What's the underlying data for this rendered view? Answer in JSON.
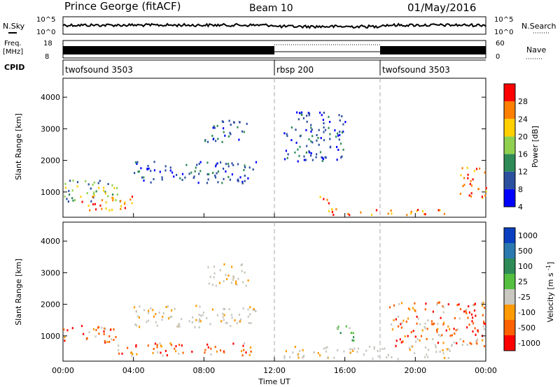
{
  "header": {
    "station": "Prince George (fitACF)",
    "beam": "Beam 10",
    "date": "01/May/2016"
  },
  "top_panels": {
    "nsky_label": "N.Sky",
    "nsky_ticks": [
      "10^5",
      "10^0"
    ],
    "nsearch_label": "N.Search",
    "nsearch_ticks": [
      "10^5",
      "10^0"
    ],
    "freq_label": [
      "Freq.",
      "[MHz]"
    ],
    "freq_ticks": [
      "18",
      "8"
    ],
    "nave_label": "Nave",
    "nave_ticks": [
      "60",
      "0"
    ],
    "cpid_label": "CPID",
    "cpid_segments": [
      {
        "label": "twofsound 3503",
        "start_h": 0,
        "end_h": 12.0
      },
      {
        "label": "rbsp 200",
        "start_h": 12.0,
        "end_h": 18.0
      },
      {
        "label": "twofsound 3503",
        "start_h": 18.0,
        "end_h": 24.0
      }
    ]
  },
  "chart_data": [
    {
      "type": "heatmap",
      "panel": "power",
      "xlabel": "Time UT",
      "ylabel": "Slant Range [km]",
      "xlim": [
        0,
        24
      ],
      "ylim": [
        200,
        4600
      ],
      "x_ticks": [
        "00:00",
        "04:00",
        "08:00",
        "12:00",
        "16:00",
        "20:00",
        "00:00"
      ],
      "y_ticks": [
        1000,
        2000,
        3000,
        4000
      ],
      "colorbar": {
        "label": "Power [dB]",
        "ticks": [
          "28",
          "24",
          "20",
          "16",
          "12",
          "8",
          "4"
        ],
        "colors": [
          "#ff0000",
          "#ff7f00",
          "#ffd000",
          "#8fd14f",
          "#2e8b57",
          "#2c4fa0",
          "#0000ff"
        ]
      },
      "features": [
        {
          "time": [
            0.0,
            3.5
          ],
          "range": [
            700,
            1400
          ],
          "level": "medium"
        },
        {
          "time": [
            1.0,
            4.0
          ],
          "range": [
            450,
            900
          ],
          "level": "high"
        },
        {
          "time": [
            4.0,
            11.0
          ],
          "range": [
            1300,
            2000
          ],
          "level": "low"
        },
        {
          "time": [
            8.0,
            10.5
          ],
          "range": [
            2600,
            3300
          ],
          "level": "low"
        },
        {
          "time": [
            12.5,
            16.0
          ],
          "range": [
            2000,
            3600
          ],
          "level": "low"
        },
        {
          "time": [
            14.5,
            15.3
          ],
          "range": [
            650,
            900
          ],
          "level": "high"
        },
        {
          "time": [
            15.0,
            22.0
          ],
          "range": [
            300,
            500
          ],
          "level": "high"
        },
        {
          "time": [
            22.5,
            24.0
          ],
          "range": [
            800,
            1800
          ],
          "level": "high"
        }
      ]
    },
    {
      "type": "heatmap",
      "panel": "velocity",
      "xlabel": "Time UT",
      "ylabel": "Slant Range [km]",
      "xlim": [
        0,
        24
      ],
      "ylim": [
        200,
        4600
      ],
      "x_ticks": [
        "00:00",
        "04:00",
        "08:00",
        "12:00",
        "16:00",
        "20:00",
        "00:00"
      ],
      "y_ticks": [
        1000,
        2000,
        3000,
        4000
      ],
      "colorbar": {
        "label": "Velocity [m s^-1]",
        "ticks": [
          "1000",
          "500",
          "100",
          "25",
          "-25",
          "-100",
          "-500",
          "-1000"
        ],
        "colors": [
          "#0a3fc0",
          "#2a7ab0",
          "#2e8b57",
          "#55c040",
          "#c8c8c0",
          "#ff9a00",
          "#ff6000",
          "#ff0000"
        ]
      },
      "features": [
        {
          "time": [
            0.0,
            3.0
          ],
          "range": [
            800,
            1400
          ],
          "level": "negative"
        },
        {
          "time": [
            3.0,
            11.0
          ],
          "range": [
            400,
            800
          ],
          "level": "negative"
        },
        {
          "time": [
            4.0,
            11.0
          ],
          "range": [
            1300,
            2000
          ],
          "level": "near-zero"
        },
        {
          "time": [
            8.0,
            10.5
          ],
          "range": [
            2600,
            3300
          ],
          "level": "near-zero"
        },
        {
          "time": [
            12.5,
            22.0
          ],
          "range": [
            300,
            700
          ],
          "level": "near-zero"
        },
        {
          "time": [
            15.5,
            16.5
          ],
          "range": [
            800,
            1400
          ],
          "level": "positive"
        },
        {
          "time": [
            18.5,
            24.0
          ],
          "range": [
            700,
            2100
          ],
          "level": "negative"
        }
      ]
    }
  ]
}
